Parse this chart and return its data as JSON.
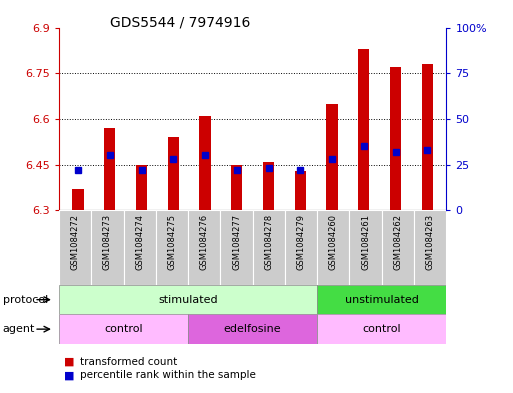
{
  "title": "GDS5544 / 7974916",
  "samples": [
    "GSM1084272",
    "GSM1084273",
    "GSM1084274",
    "GSM1084275",
    "GSM1084276",
    "GSM1084277",
    "GSM1084278",
    "GSM1084279",
    "GSM1084260",
    "GSM1084261",
    "GSM1084262",
    "GSM1084263"
  ],
  "red_values": [
    6.37,
    6.57,
    6.45,
    6.54,
    6.61,
    6.45,
    6.46,
    6.43,
    6.65,
    6.83,
    6.77,
    6.78
  ],
  "blue_percentiles": [
    22,
    30,
    22,
    28,
    30,
    22,
    23,
    22,
    28,
    35,
    32,
    33
  ],
  "y_min": 6.3,
  "y_max": 6.9,
  "y_ticks": [
    6.3,
    6.45,
    6.6,
    6.75,
    6.9
  ],
  "y_tick_labels": [
    "6.3",
    "6.45",
    "6.6",
    "6.75",
    "6.9"
  ],
  "right_y_ticks": [
    0,
    25,
    50,
    75,
    100
  ],
  "right_y_labels": [
    "0",
    "25",
    "50",
    "75",
    "100%"
  ],
  "red_color": "#cc0000",
  "blue_color": "#0000cc",
  "bar_width": 0.35,
  "protocol_stim_color": "#ccffcc",
  "protocol_unstim_color": "#44dd44",
  "agent_control_color": "#ffbbff",
  "agent_edel_color": "#dd66dd",
  "protocol_label": "protocol",
  "agent_label": "agent",
  "legend_red": "transformed count",
  "legend_blue": "percentile rank within the sample",
  "bg_color": "#ffffff",
  "sample_bg_color": "#cccccc",
  "grid_color": "#000000",
  "title_size": 10
}
